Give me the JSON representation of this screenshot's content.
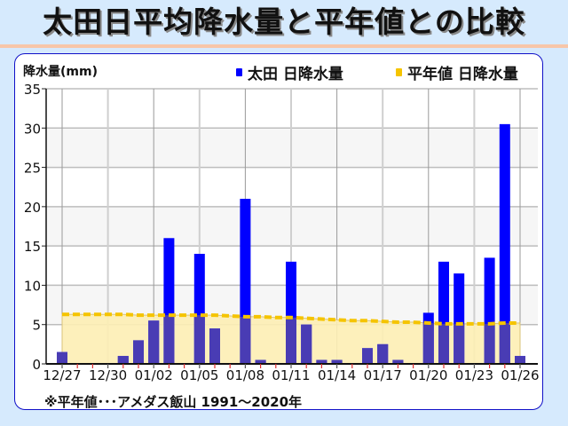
{
  "title": "太田日平均降水量と平年値との比較",
  "colors": {
    "background": "#d6eafd",
    "title_rule": "#f7c6a9",
    "frame_border": "#1010c8",
    "bar_actual": "#0000ff",
    "bar_overlap": "#4d3fb0",
    "normal_line": "#f5c400",
    "normal_fill": "#fdeeb4",
    "band": "#f6f6f6"
  },
  "legend": {
    "actual": "太田 日降水量",
    "normal": "平年値 日降水量"
  },
  "note": "※平年値･･･アメダス飯山 1991〜2020年",
  "chart_data": {
    "type": "bar",
    "title": "太田日平均降水量と平年値との比較",
    "xlabel": "",
    "ylabel": "降水量(mm)",
    "ylim": [
      0,
      35
    ],
    "yticks": [
      0,
      5,
      10,
      15,
      20,
      25,
      30,
      35
    ],
    "grid": true,
    "legend_position": "top-right",
    "categories": [
      "12/27",
      "12/28",
      "12/29",
      "12/30",
      "12/31",
      "01/01",
      "01/02",
      "01/03",
      "01/04",
      "01/05",
      "01/06",
      "01/07",
      "01/08",
      "01/09",
      "01/10",
      "01/11",
      "01/12",
      "01/13",
      "01/14",
      "01/15",
      "01/16",
      "01/17",
      "01/18",
      "01/19",
      "01/20",
      "01/21",
      "01/22",
      "01/23",
      "01/24",
      "01/25",
      "01/26"
    ],
    "xtick_labels": [
      "12/27",
      "12/30",
      "01/02",
      "01/05",
      "01/08",
      "01/11",
      "01/14",
      "01/17",
      "01/20",
      "01/23",
      "01/26"
    ],
    "series": [
      {
        "name": "太田 日降水量",
        "type": "bar",
        "values": [
          1.5,
          0,
          0,
          0,
          1,
          3,
          5.5,
          16,
          0,
          14,
          4.5,
          0,
          21,
          0.5,
          0,
          13,
          5,
          0.5,
          0.5,
          0,
          2,
          2.5,
          0.5,
          0,
          6.5,
          13,
          11.5,
          0,
          13.5,
          30.5,
          1
        ]
      },
      {
        "name": "平年値 日降水量",
        "type": "area",
        "values": [
          6.3,
          6.3,
          6.3,
          6.3,
          6.3,
          6.2,
          6.2,
          6.2,
          6.2,
          6.2,
          6.2,
          6.1,
          6.0,
          6.0,
          5.9,
          5.9,
          5.8,
          5.7,
          5.6,
          5.5,
          5.5,
          5.4,
          5.3,
          5.3,
          5.2,
          5.1,
          5.1,
          5.1,
          5.1,
          5.2,
          5.2
        ]
      }
    ]
  }
}
